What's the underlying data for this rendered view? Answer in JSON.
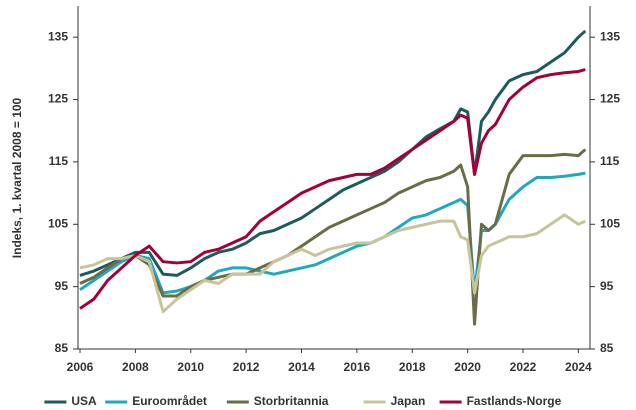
{
  "chart_data": {
    "type": "line",
    "y_label": "Indeks, 1. kvartal 2008 = 100",
    "x": [
      2006,
      2006.5,
      2007,
      2007.5,
      2008,
      2008.5,
      2009,
      2009.5,
      2010,
      2010.5,
      2011,
      2011.5,
      2012,
      2012.5,
      2013,
      2013.5,
      2014,
      2014.5,
      2015,
      2015.5,
      2016,
      2016.5,
      2017,
      2017.5,
      2018,
      2018.5,
      2019,
      2019.5,
      2019.75,
      2020,
      2020.25,
      2020.5,
      2020.75,
      2021,
      2021.5,
      2022,
      2022.5,
      2023,
      2023.5,
      2024,
      2024.25
    ],
    "series": [
      {
        "name": "USA",
        "color": "#1d5c5c",
        "values": [
          96.8,
          97.5,
          98.5,
          99.5,
          100.5,
          100.5,
          97,
          96.8,
          98,
          99.5,
          100.5,
          101,
          102,
          103.5,
          104,
          105,
          106,
          107.5,
          109,
          110.5,
          111.5,
          112.5,
          113.5,
          115,
          117,
          119,
          120.3,
          121.5,
          123.5,
          123,
          113,
          121.5,
          123,
          125,
          128,
          129,
          129.5,
          131,
          132.5,
          135,
          136
        ]
      },
      {
        "name": "Euroområdet",
        "color": "#1fa8c0",
        "values": [
          94.5,
          96,
          97.5,
          99,
          100,
          99.5,
          94,
          94.3,
          95,
          96,
          97.5,
          98,
          98,
          97.5,
          97,
          97.5,
          98,
          98.5,
          99.5,
          100.5,
          101.5,
          102,
          103,
          104.5,
          106,
          106.5,
          107.5,
          108.5,
          109,
          108,
          94,
          104,
          104,
          105,
          109,
          111,
          112.5,
          112.5,
          112.7,
          113,
          113.2
        ]
      },
      {
        "name": "Storbritannia",
        "color": "#6b6b45",
        "values": [
          95.5,
          96.5,
          98,
          99.5,
          100,
          98.5,
          93.5,
          93.5,
          95,
          96,
          96.5,
          97,
          97,
          98,
          99,
          100,
          101.5,
          103,
          104.5,
          105.5,
          106.5,
          107.5,
          108.5,
          110,
          111,
          112,
          112.5,
          113.5,
          114.5,
          111,
          89,
          105,
          104,
          105,
          113,
          116,
          116,
          116,
          116.2,
          116,
          117
        ]
      },
      {
        "name": "Japan",
        "color": "#c8c49a",
        "values": [
          98,
          98.5,
          99.5,
          99.5,
          100,
          99,
          91,
          93,
          94.5,
          96,
          95.5,
          97,
          97,
          97,
          99,
          100,
          101,
          100,
          101,
          101.5,
          102,
          102,
          103,
          104,
          104.5,
          105,
          105.5,
          105.5,
          103,
          102.5,
          94,
          100,
          101.5,
          102,
          103,
          103,
          103.5,
          105,
          106.5,
          105,
          105.5
        ]
      },
      {
        "name": "Fastlands-Norge",
        "color": "#a3003a",
        "values": [
          91.5,
          93,
          96,
          98,
          100,
          101.5,
          99,
          98.8,
          99,
          100.5,
          101,
          102,
          103,
          105.5,
          107,
          108.5,
          110,
          111,
          112,
          112.5,
          113,
          113,
          114,
          115.5,
          117,
          118.5,
          120,
          121.5,
          122.5,
          122,
          113,
          118,
          120,
          121,
          125,
          127,
          128.5,
          129,
          129.3,
          129.5,
          129.8
        ]
      }
    ],
    "xlim": [
      2006,
      2024.6
    ],
    "xticks": [
      2006,
      2008,
      2010,
      2012,
      2014,
      2016,
      2018,
      2020,
      2022,
      2024
    ],
    "ylim": [
      85,
      140
    ],
    "yticks": [
      85,
      95,
      105,
      115,
      125,
      135
    ],
    "y2lim": [
      85,
      140
    ],
    "y2ticks": [
      85,
      95,
      105,
      115,
      125,
      135
    ],
    "grid": false
  }
}
